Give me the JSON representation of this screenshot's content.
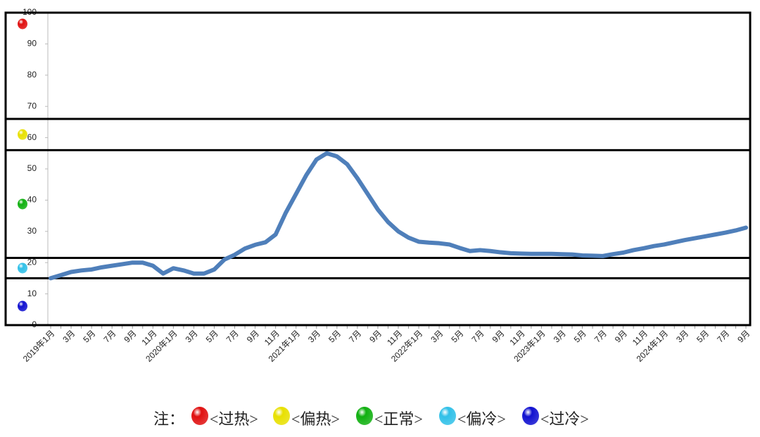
{
  "chart_data": {
    "type": "line",
    "categories": [
      "2019年1月",
      null,
      "3月",
      null,
      "5月",
      null,
      "7月",
      null,
      "9月",
      null,
      "11月",
      null,
      "2020年1月",
      null,
      "3月",
      null,
      "5月",
      null,
      "7月",
      null,
      "9月",
      null,
      "11月",
      null,
      "2021年1月",
      null,
      "3月",
      null,
      "5月",
      null,
      "7月",
      null,
      "9月",
      null,
      "11月",
      null,
      "2022年1月",
      null,
      "3月",
      null,
      "5月",
      null,
      "7月",
      null,
      "9月",
      null,
      "11月",
      null,
      "2023年1月",
      null,
      "3月",
      null,
      "5月",
      null,
      "7月",
      null,
      "9月",
      null,
      "11月",
      null,
      "2024年1月",
      null,
      "3月",
      null,
      "5月",
      null,
      "7月",
      null,
      "9月"
    ],
    "series": [
      {
        "color": "#4f7fba",
        "values": [
          15,
          16,
          17,
          17.5,
          17.8,
          18.5,
          19,
          19.5,
          20,
          20,
          19,
          16.5,
          18.2,
          17.5,
          16.5,
          16.5,
          17.8,
          21,
          22.5,
          24.5,
          25.7,
          26.5,
          29,
          36,
          42,
          48,
          53,
          55,
          54,
          51.5,
          47,
          42,
          37,
          33,
          30,
          28,
          26.7,
          26.4,
          26.2,
          25.8,
          24.7,
          23.7,
          24,
          23.7,
          23.3,
          23,
          22.9,
          22.8,
          22.8,
          22.8,
          22.7,
          22.6,
          22.3,
          22.2,
          22.1,
          22.7,
          23.2,
          24,
          24.6,
          25.3,
          25.8,
          26.5,
          27.2,
          27.8,
          28.4,
          29,
          29.6,
          30.3,
          31.2
        ]
      }
    ],
    "ylim": [
      0,
      100
    ],
    "yticks": [
      0,
      10,
      20,
      30,
      40,
      50,
      60,
      70,
      80,
      90,
      100
    ],
    "thresholds": [
      15,
      21.5,
      56,
      66
    ],
    "legend_prefix": "注：",
    "zones": [
      {
        "name": "<过热>",
        "color": "#e01010"
      },
      {
        "name": "<偏热>",
        "color": "#e8e000"
      },
      {
        "name": "<正常>",
        "color": "#10b010"
      },
      {
        "name": "<偏冷>",
        "color": "#30c0e8"
      },
      {
        "name": "<过冷>",
        "color": "#1010d0"
      }
    ]
  }
}
